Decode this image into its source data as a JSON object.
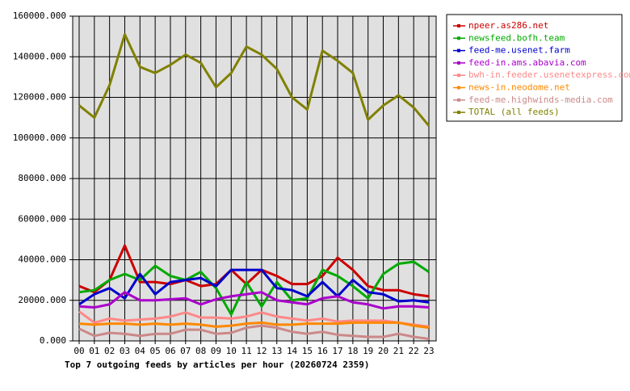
{
  "chart_data": {
    "type": "line",
    "title": "Top 7 outgoing feeds by articles per hour (20260724 2359)",
    "categories": [
      "00",
      "01",
      "02",
      "03",
      "04",
      "05",
      "06",
      "07",
      "08",
      "09",
      "10",
      "11",
      "12",
      "13",
      "14",
      "15",
      "16",
      "17",
      "18",
      "19",
      "20",
      "21",
      "22",
      "23"
    ],
    "ylim": [
      0,
      160000
    ],
    "yticks": [
      {
        "value": 0,
        "label": "0.000"
      },
      {
        "value": 20000,
        "label": "20000.000"
      },
      {
        "value": 40000,
        "label": "40000.000"
      },
      {
        "value": 60000,
        "label": "60000.000"
      },
      {
        "value": 80000,
        "label": "80000.000"
      },
      {
        "value": 100000,
        "label": "100000.000"
      },
      {
        "value": 120000,
        "label": "120000.000"
      },
      {
        "value": 140000,
        "label": "140000.000"
      },
      {
        "value": 160000,
        "label": "160000.000"
      }
    ],
    "grid": true,
    "series": [
      {
        "name": "npeer.as286.net",
        "color": "#cc0000",
        "values": [
          27000,
          24000,
          30000,
          47000,
          29000,
          29000,
          28000,
          30000,
          27000,
          28000,
          35000,
          28000,
          35000,
          32000,
          28000,
          28000,
          32000,
          41000,
          35000,
          27000,
          25000,
          25000,
          23000,
          22000
        ]
      },
      {
        "name": "newsfeed.bofh.team",
        "color": "#00aa00",
        "values": [
          24000,
          25000,
          30000,
          33000,
          30000,
          37000,
          32000,
          30000,
          34000,
          26000,
          13000,
          29000,
          17000,
          29000,
          20000,
          21000,
          35000,
          32000,
          27000,
          21000,
          33000,
          38000,
          39000,
          34000
        ]
      },
      {
        "name": "feed-me.usenet.farm",
        "color": "#0000cc",
        "values": [
          18000,
          23000,
          26000,
          21000,
          33000,
          23000,
          29000,
          30000,
          31000,
          27000,
          35000,
          35000,
          35000,
          26000,
          25000,
          22000,
          29000,
          22000,
          30000,
          24000,
          23000,
          19500,
          20000,
          19000
        ]
      },
      {
        "name": "feed-in.ams.abavia.com",
        "color": "#aa00cc",
        "values": [
          17000,
          16500,
          18000,
          24000,
          20000,
          20000,
          20500,
          21000,
          18000,
          20500,
          22000,
          23000,
          24000,
          20000,
          19000,
          18000,
          21000,
          22000,
          19000,
          18000,
          16000,
          17000,
          17000,
          16500
        ]
      },
      {
        "name": "bwh-in.feeder.usenetexpress.com",
        "color": "#ff8888",
        "values": [
          14500,
          9000,
          11000,
          10000,
          10500,
          11000,
          12000,
          14000,
          11500,
          11500,
          11000,
          12000,
          14000,
          12000,
          11000,
          10000,
          11000,
          9500,
          10000,
          10000,
          10000,
          9000,
          8000,
          7000
        ]
      },
      {
        "name": "news-in.neodome.net",
        "color": "#ff8800",
        "values": [
          8500,
          8000,
          8500,
          8500,
          8000,
          8500,
          8000,
          8500,
          8000,
          7000,
          7500,
          8500,
          9000,
          8000,
          8000,
          8500,
          8500,
          8500,
          9000,
          9000,
          9000,
          9000,
          7500,
          6500
        ]
      },
      {
        "name": "feed-me.highwinds-media.com",
        "color": "#cc8888",
        "values": [
          6000,
          2500,
          4000,
          3500,
          2500,
          3500,
          3500,
          5500,
          5500,
          3500,
          4000,
          6500,
          7500,
          6500,
          4500,
          3500,
          4500,
          3000,
          2500,
          2000,
          2000,
          3500,
          2000,
          1000
        ]
      },
      {
        "name": "TOTAL (all feeds)",
        "color": "#808000",
        "values": [
          116000,
          110000,
          126000,
          151000,
          135000,
          132000,
          136000,
          141000,
          137000,
          125000,
          132000,
          145000,
          141000,
          134000,
          120000,
          114000,
          143000,
          138000,
          132000,
          109000,
          116000,
          121000,
          115000,
          106000
        ]
      }
    ]
  }
}
